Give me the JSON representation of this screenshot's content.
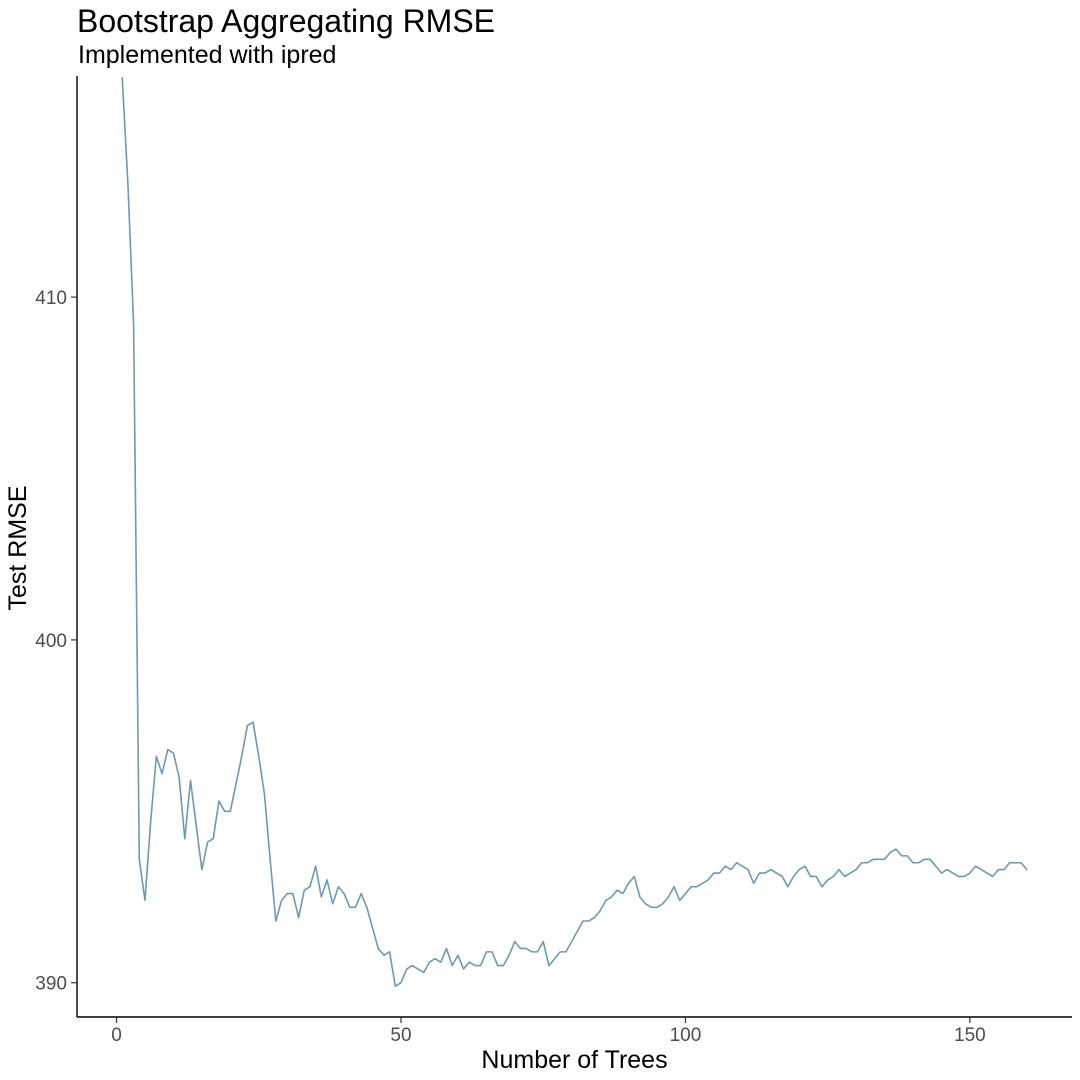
{
  "chart_data": {
    "type": "line",
    "title": "Bootstrap Aggregating RMSE",
    "subtitle": "Implemented with ipred",
    "xlabel": "Number of Trees",
    "ylabel": "Test RMSE",
    "xlim": [
      -6.95,
      167.95
    ],
    "ylim": [
      389.0,
      416.45
    ],
    "x_ticks": [
      0,
      50,
      100,
      150
    ],
    "x_tick_labels": [
      "0",
      "50",
      "100",
      "150"
    ],
    "y_ticks": [
      390,
      400,
      410
    ],
    "y_tick_labels": [
      "390",
      "400",
      "410"
    ],
    "grid": false,
    "legend": "none",
    "line_color": "#6f98b3",
    "series": [
      {
        "x": [
          1,
          2,
          3,
          4,
          5,
          6,
          7,
          8,
          9,
          10,
          11,
          12,
          13,
          14,
          15,
          16,
          17,
          18,
          19,
          20,
          21,
          22,
          23,
          24,
          25,
          26,
          27,
          28,
          29,
          30,
          31,
          32,
          33,
          34,
          35,
          36,
          37,
          38,
          39,
          40,
          41,
          42,
          43,
          44,
          45,
          46,
          47,
          48,
          49,
          50,
          51,
          52,
          53,
          54,
          55,
          56,
          57,
          58,
          59,
          60,
          61,
          62,
          63,
          64,
          65,
          66,
          67,
          68,
          69,
          70,
          71,
          72,
          73,
          74,
          75,
          76,
          77,
          78,
          79,
          80,
          81,
          82,
          83,
          84,
          85,
          86,
          87,
          88,
          89,
          90,
          91,
          92,
          93,
          94,
          95,
          96,
          97,
          98,
          99,
          100,
          101,
          102,
          103,
          104,
          105,
          106,
          107,
          108,
          109,
          110,
          111,
          112,
          113,
          114,
          115,
          116,
          117,
          118,
          119,
          120,
          121,
          122,
          123,
          124,
          125,
          126,
          127,
          128,
          129,
          130,
          131,
          132,
          133,
          134,
          135,
          136,
          137,
          138,
          139,
          140,
          141,
          142,
          143,
          144,
          145,
          146,
          147,
          148,
          149,
          150,
          151,
          152,
          153,
          154,
          155,
          156,
          157,
          158,
          159,
          160
        ],
        "y": [
          416.4,
          413.3,
          409.2,
          393.6,
          392.4,
          394.7,
          396.6,
          396.1,
          396.8,
          396.7,
          396.0,
          394.2,
          395.9,
          394.6,
          393.3,
          394.1,
          394.2,
          395.3,
          395.0,
          395.0,
          395.8,
          396.6,
          397.5,
          397.6,
          396.6,
          395.5,
          393.6,
          391.8,
          392.4,
          392.6,
          392.6,
          391.9,
          392.7,
          392.8,
          393.4,
          392.5,
          393.0,
          392.3,
          392.8,
          392.6,
          392.2,
          392.2,
          392.6,
          392.2,
          391.6,
          391.0,
          390.8,
          390.9,
          389.9,
          390.0,
          390.4,
          390.5,
          390.4,
          390.3,
          390.6,
          390.7,
          390.6,
          391.0,
          390.5,
          390.8,
          390.4,
          390.6,
          390.5,
          390.5,
          390.9,
          390.9,
          390.5,
          390.5,
          390.8,
          391.2,
          391.0,
          391.0,
          390.9,
          390.9,
          391.2,
          390.5,
          390.7,
          390.9,
          390.9,
          391.2,
          391.5,
          391.8,
          391.8,
          391.9,
          392.1,
          392.4,
          392.5,
          392.7,
          392.6,
          392.9,
          393.1,
          392.5,
          392.3,
          392.2,
          392.2,
          392.3,
          392.5,
          392.8,
          392.4,
          392.6,
          392.8,
          392.8,
          392.9,
          393.0,
          393.2,
          393.2,
          393.4,
          393.3,
          393.5,
          393.4,
          393.3,
          392.9,
          393.2,
          393.2,
          393.3,
          393.2,
          393.1,
          392.8,
          393.1,
          393.3,
          393.4,
          393.1,
          393.1,
          392.8,
          393.0,
          393.1,
          393.3,
          393.1,
          393.2,
          393.3,
          393.5,
          393.5,
          393.6,
          393.6,
          393.6,
          393.8,
          393.9,
          393.7,
          393.7,
          393.5,
          393.5,
          393.6,
          393.6,
          393.4,
          393.2,
          393.3,
          393.2,
          393.1,
          393.1,
          393.2,
          393.4,
          393.3,
          393.2,
          393.1,
          393.3,
          393.3,
          393.5,
          393.5,
          393.5,
          393.3
        ]
      }
    ]
  }
}
